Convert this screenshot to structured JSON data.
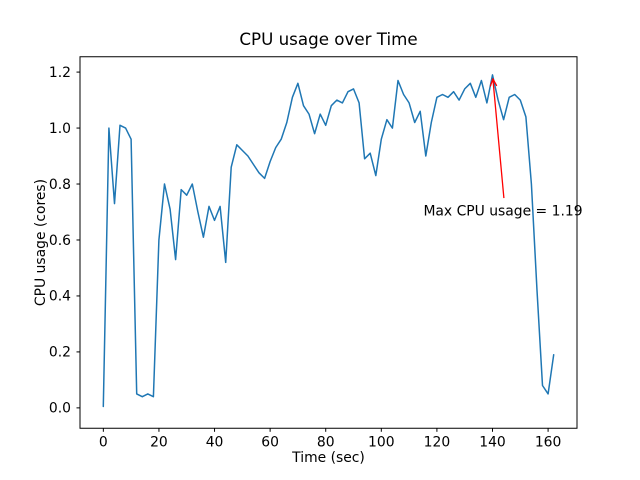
{
  "figure": {
    "background": "#ffffff",
    "spine_color": "#000000"
  },
  "chart_data": {
    "type": "line",
    "title": "CPU usage over Time",
    "xlabel": "Time (sec)",
    "ylabel": "CPU usage (cores)",
    "line_color": "#1f77b4",
    "grid": false,
    "legend": null,
    "xlim": [
      -8.4,
      170.4
    ],
    "ylim": [
      -0.073,
      1.255
    ],
    "x_ticks": [
      0,
      20,
      40,
      60,
      80,
      100,
      120,
      140,
      160
    ],
    "x_tick_labels": [
      "0",
      "20",
      "40",
      "60",
      "80",
      "100",
      "120",
      "140",
      "160"
    ],
    "y_ticks": [
      0.0,
      0.2,
      0.4,
      0.6,
      0.8,
      1.0,
      1.2
    ],
    "y_tick_labels": [
      "0.0",
      "0.2",
      "0.4",
      "0.6",
      "0.8",
      "1.0",
      "1.2"
    ],
    "x": [
      0,
      2,
      4,
      6,
      8,
      10,
      12,
      14,
      16,
      18,
      20,
      22,
      24,
      26,
      28,
      30,
      32,
      34,
      36,
      38,
      40,
      42,
      44,
      46,
      48,
      50,
      52,
      54,
      56,
      58,
      60,
      62,
      64,
      66,
      68,
      70,
      72,
      74,
      76,
      78,
      80,
      82,
      84,
      86,
      88,
      90,
      92,
      94,
      96,
      98,
      100,
      102,
      104,
      106,
      108,
      110,
      112,
      114,
      116,
      118,
      120,
      122,
      124,
      126,
      128,
      130,
      132,
      134,
      136,
      138,
      140,
      142,
      144,
      146,
      148,
      150,
      152,
      154,
      156,
      158,
      160,
      162
    ],
    "values": [
      0.005,
      1.0,
      0.73,
      1.01,
      1.0,
      0.96,
      0.05,
      0.04,
      0.05,
      0.04,
      0.6,
      0.8,
      0.71,
      0.53,
      0.78,
      0.76,
      0.8,
      0.7,
      0.61,
      0.72,
      0.67,
      0.72,
      0.52,
      0.86,
      0.94,
      0.92,
      0.9,
      0.87,
      0.84,
      0.82,
      0.88,
      0.93,
      0.96,
      1.02,
      1.11,
      1.16,
      1.08,
      1.05,
      0.98,
      1.05,
      1.01,
      1.08,
      1.1,
      1.09,
      1.13,
      1.14,
      1.09,
      0.89,
      0.91,
      0.83,
      0.96,
      1.03,
      1.0,
      1.17,
      1.12,
      1.09,
      1.02,
      1.06,
      0.9,
      1.02,
      1.11,
      1.12,
      1.11,
      1.13,
      1.1,
      1.14,
      1.16,
      1.11,
      1.17,
      1.09,
      1.19,
      1.1,
      1.03,
      1.11,
      1.12,
      1.1,
      1.04,
      0.8,
      0.42,
      0.08,
      0.05,
      0.19
    ],
    "annotation": {
      "text": "Max CPU usage = 1.19",
      "max_value": 1.19,
      "color": "#ff0000",
      "xy": [
        140,
        1.19
      ],
      "xytext": [
        144.1,
        0.75
      ]
    }
  }
}
